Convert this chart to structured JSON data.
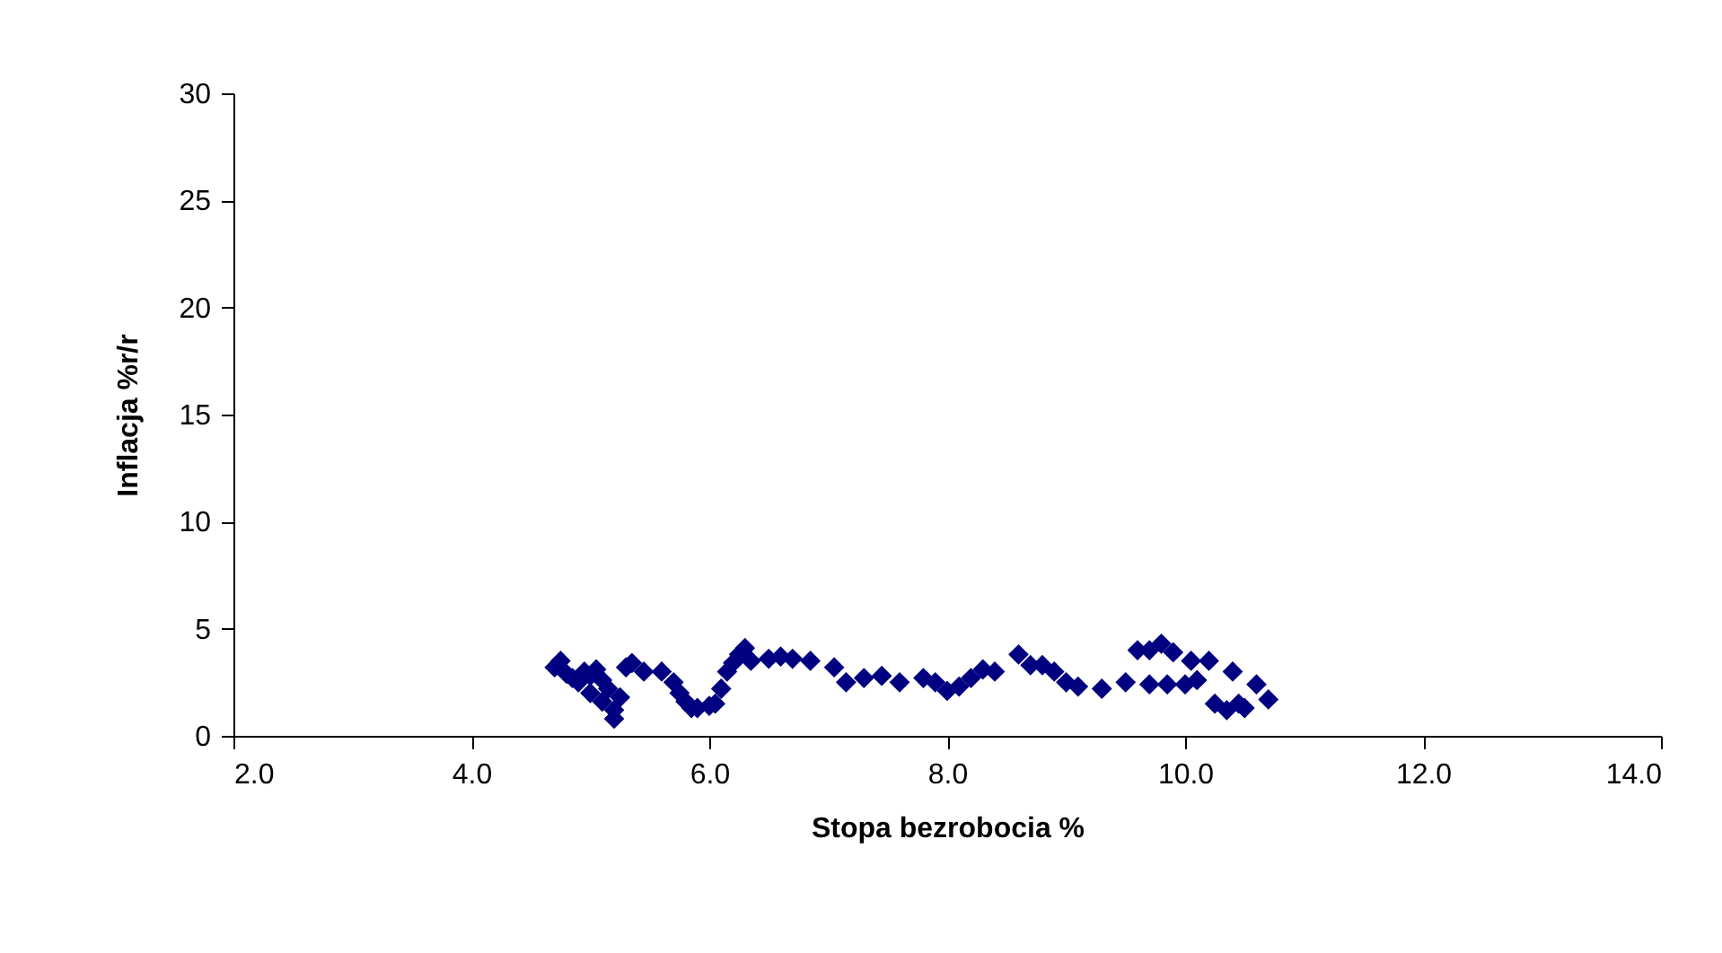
{
  "chart_data": {
    "type": "scatter",
    "xlabel": "Stopa bezrobocia %",
    "ylabel": "Inflacja %r/r",
    "xlim": [
      2.0,
      14.0
    ],
    "xticks": [
      {
        "value": 2,
        "label": "2.0"
      },
      {
        "value": 4,
        "label": "4.0"
      },
      {
        "value": 6,
        "label": "6.0"
      },
      {
        "value": 8,
        "label": "8.0"
      },
      {
        "value": 10,
        "label": "10.0"
      },
      {
        "value": 12,
        "label": "12.0"
      },
      {
        "value": 14,
        "label": "14.0"
      }
    ],
    "ylim": [
      0,
      30
    ],
    "yticks": [
      0,
      5,
      10,
      15,
      20,
      25,
      30
    ],
    "grid": false,
    "marker": "diamond",
    "series": [
      {
        "color": "#000080",
        "x": [
          4.7,
          4.75,
          4.8,
          4.85,
          4.9,
          4.95,
          5.0,
          5.0,
          5.05,
          5.1,
          5.1,
          5.15,
          5.2,
          5.2,
          5.25,
          5.3,
          5.35,
          5.45,
          5.6,
          5.7,
          5.75,
          5.8,
          5.85,
          5.9,
          6.0,
          6.05,
          6.1,
          6.15,
          6.2,
          6.25,
          6.3,
          6.35,
          6.5,
          6.6,
          6.7,
          6.85,
          7.05,
          7.15,
          7.3,
          7.45,
          7.6,
          7.8,
          7.9,
          8.0,
          8.1,
          8.2,
          8.3,
          8.4,
          8.6,
          8.7,
          8.8,
          8.9,
          9.0,
          9.1,
          9.3,
          9.5,
          9.7,
          9.85,
          10.0,
          10.1,
          10.05,
          9.9,
          9.8,
          9.7,
          9.6,
          10.2,
          10.4,
          10.25,
          10.35,
          10.5,
          10.6,
          10.7,
          10.45
        ],
        "values": [
          3.2,
          3.5,
          2.9,
          2.7,
          2.5,
          3.0,
          2.8,
          2.0,
          3.1,
          2.6,
          1.6,
          2.2,
          1.2,
          0.8,
          1.8,
          3.2,
          3.4,
          3.0,
          3.0,
          2.5,
          2.0,
          1.6,
          1.3,
          1.3,
          1.4,
          1.5,
          2.2,
          3.0,
          3.4,
          3.8,
          4.1,
          3.5,
          3.6,
          3.7,
          3.6,
          3.5,
          3.2,
          2.5,
          2.7,
          2.8,
          2.5,
          2.7,
          2.5,
          2.1,
          2.3,
          2.7,
          3.1,
          3.0,
          3.8,
          3.3,
          3.3,
          3.0,
          2.5,
          2.3,
          2.2,
          2.5,
          2.4,
          2.4,
          2.4,
          2.6,
          3.5,
          3.9,
          4.3,
          4.0,
          4.0,
          3.5,
          3.0,
          1.5,
          1.2,
          1.3,
          2.4,
          1.7,
          1.5
        ]
      }
    ]
  }
}
